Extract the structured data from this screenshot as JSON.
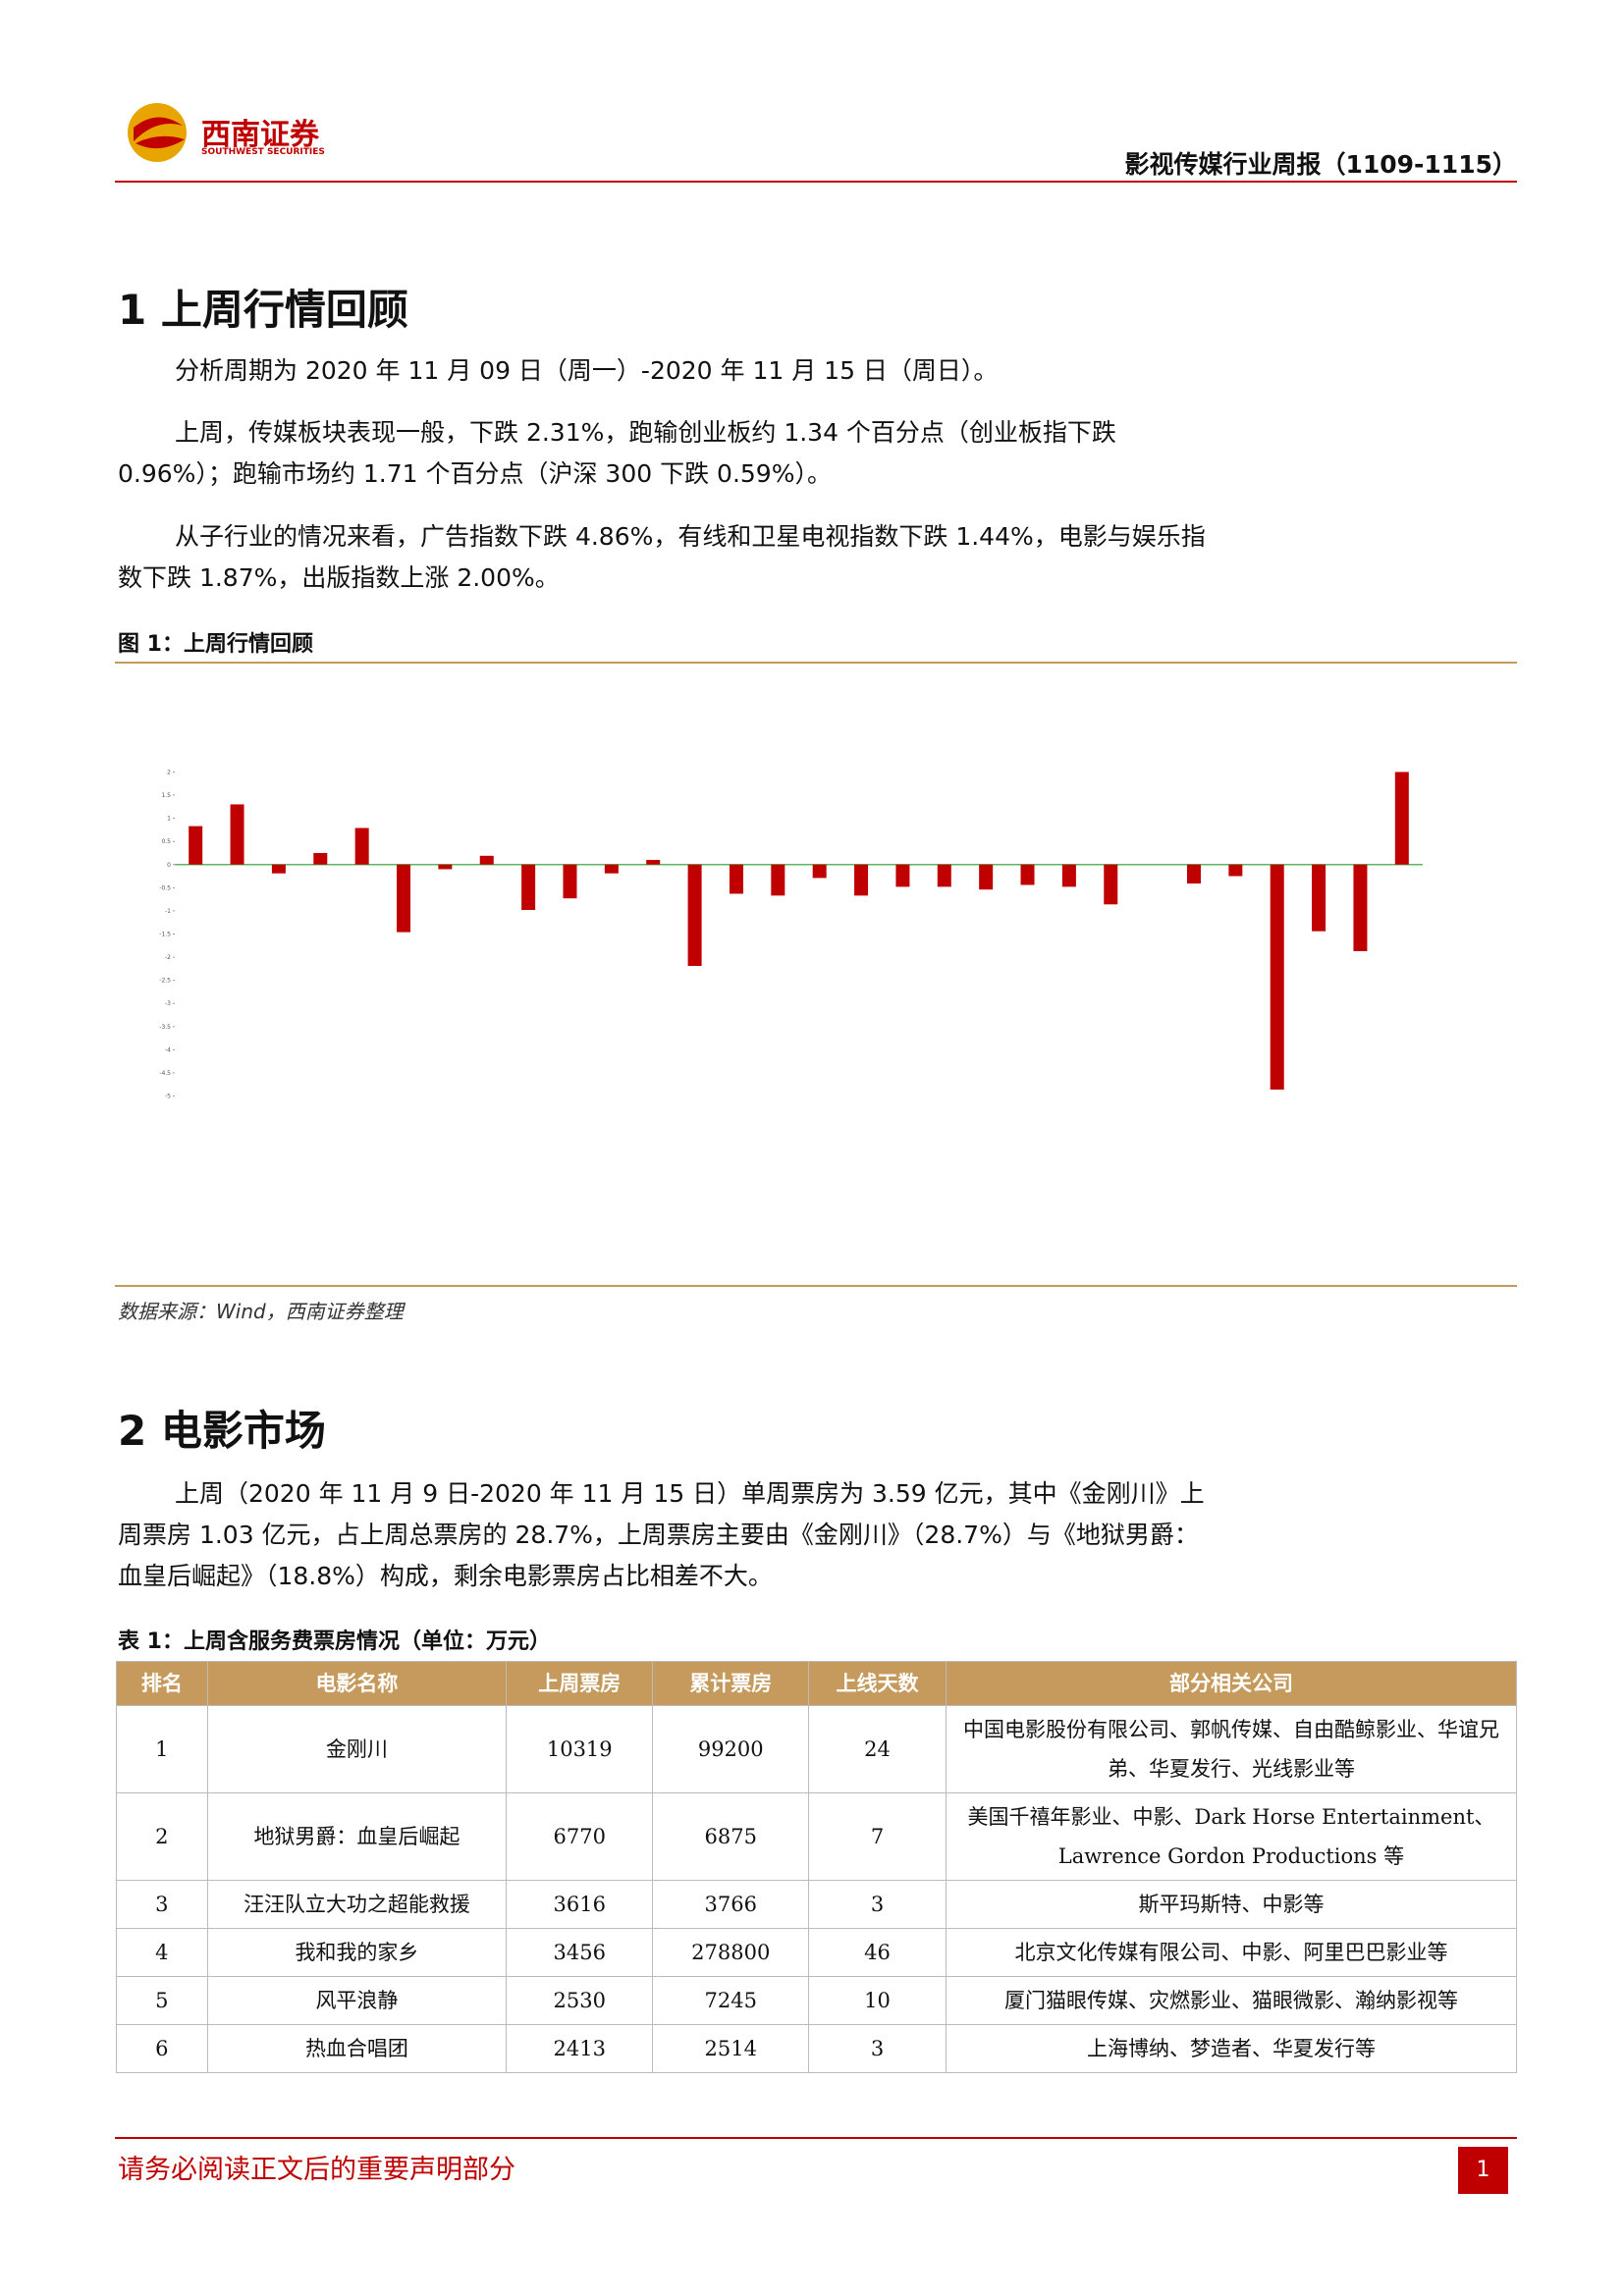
{
  "header": {
    "logo_cn": "西南证券",
    "logo_en": "SOUTHWEST SECURITIES",
    "report": "影视传媒行业周报（1109-1115）"
  },
  "section1": {
    "heading": "1 上周行情回顾",
    "paragraphs": [
      "分析周期为 2020 年 11 月 09 日（周一）-2020 年 11 月 15 日（周日）。",
      "上周，传媒板块表现一般，下跌 2.31%，跑输创业板约 1.34 个百分点（创业板指下跌 0.96%）；跑输市场约 1.71 个百分点（沪深 300 下跌 0.59%）。",
      "从子行业的情况来看，广告指数下跌 4.86%，有线和卫星电视指数下跌 1.44%，电影与娱乐指数下跌 1.87%，出版指数上涨 2.00%。"
    ],
    "figure_caption": "图 1：上周行情回顾",
    "source": "数据来源：Wind，西南证券整理"
  },
  "chart_data": {
    "type": "bar",
    "categories": [
      null,
      null,
      null,
      null,
      null,
      null,
      null,
      null,
      null,
      null,
      null,
      null,
      null,
      null,
      null,
      null,
      null,
      null,
      null,
      null,
      null,
      null,
      null,
      null,
      null,
      null,
      null,
      null,
      null,
      null
    ],
    "values": [
      0.83,
      1.3,
      -0.19,
      0.25,
      0.79,
      -1.46,
      -0.1,
      0.19,
      -0.98,
      -0.73,
      -0.19,
      0.1,
      -2.19,
      -0.63,
      -0.67,
      -0.29,
      -0.67,
      -0.48,
      -0.48,
      -0.54,
      -0.44,
      -0.48,
      -0.86,
      null,
      -0.41,
      -0.25,
      -4.86,
      -1.44,
      -1.87,
      2.0
    ],
    "color": "#c00000",
    "ylim": [
      -5.2,
      2.2
    ],
    "yticks": [
      2,
      1.5,
      1,
      0.5,
      0,
      -0.5,
      -1,
      -1.5,
      -2,
      -2.5,
      -3,
      -3.5,
      -4,
      -4.5,
      -5
    ],
    "grid": false
  },
  "section2": {
    "heading": "2 电影市场",
    "paragraphs": [
      "上周（2020 年 11 月 9 日-2020 年 11 月 15 日）单周票房为 3.59 亿元，其中《金刚川》上周票房 1.03 亿元，占上周总票房的 28.7%，上周票房主要由《金刚川》（28.7%）与《地狱男爵：血皇后崛起》（18.8%）构成，剩余电影票房占比相差不大。"
    ],
    "table_caption": "表 1：上周含服务费票房情况（单位：万元）"
  },
  "table": {
    "header": [
      "排名",
      "电影名称",
      "上周票房",
      "累计票房",
      "上线天数",
      "部分相关公司"
    ],
    "rows": [
      [
        "1",
        "金刚川",
        "10319",
        "99200",
        "24",
        "中国电影股份有限公司、郭帆传媒、自由酷鲸影业、华谊兄弟、华夏发行、光线影业等"
      ],
      [
        "2",
        "地狱男爵：血皇后崛起",
        "6770",
        "6875",
        "7",
        "美国千禧年影业、中影、Dark Horse Entertainment、Lawrence Gordon Productions 等"
      ],
      [
        "3",
        "汪汪队立大功之超能救援",
        "3616",
        "3766",
        "3",
        "斯平玛斯特、中影等"
      ],
      [
        "4",
        "我和我的家乡",
        "3456",
        "278800",
        "46",
        "北京文化传媒有限公司、中影、阿里巴巴影业等"
      ],
      [
        "5",
        "风平浪静",
        "2530",
        "7245",
        "10",
        "厦门猫眼传媒、灾燃影业、猫眼微影、瀚纳影视等"
      ],
      [
        "6",
        "热血合唱团",
        "2413",
        "2514",
        "3",
        "上海博纳、梦造者、华夏发行等"
      ]
    ]
  },
  "footer": {
    "notice": "请务必阅读正文后的重要声明部分",
    "page": "1"
  }
}
